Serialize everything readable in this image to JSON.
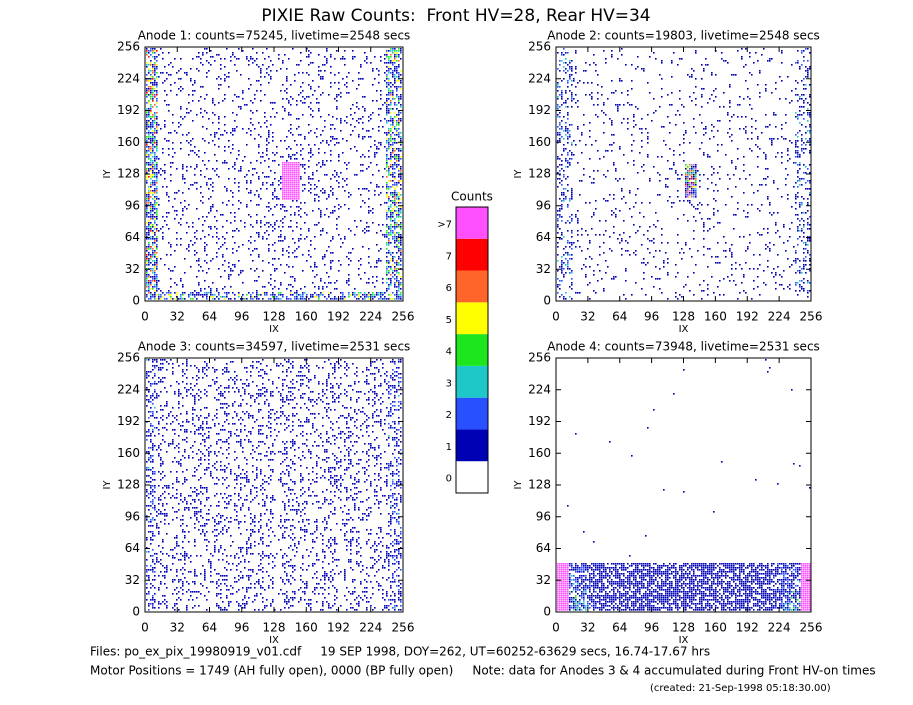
{
  "title": "PIXIE Raw Counts:  Front HV=28, Rear HV=34",
  "chart_data": [
    {
      "type": "heatmap",
      "title": "Anode 1: counts=75245, livetime=2548 secs",
      "xlabel": "IX",
      "ylabel": "IY",
      "xlim": [
        0,
        256
      ],
      "ylim": [
        0,
        256
      ],
      "xticks": [
        0,
        32,
        64,
        96,
        128,
        160,
        192,
        224,
        256
      ],
      "yticks": [
        0,
        32,
        64,
        96,
        128,
        160,
        192,
        224,
        256
      ]
    },
    {
      "type": "heatmap",
      "title": "Anode 2: counts=19803, livetime=2548 secs",
      "xlabel": "IX",
      "ylabel": "IY",
      "xlim": [
        0,
        256
      ],
      "ylim": [
        0,
        256
      ],
      "xticks": [
        0,
        32,
        64,
        96,
        128,
        160,
        192,
        224,
        256
      ],
      "yticks": [
        0,
        32,
        64,
        96,
        128,
        160,
        192,
        224,
        256
      ]
    },
    {
      "type": "heatmap",
      "title": "Anode 3: counts=34597, livetime=2531 secs",
      "xlabel": "IX",
      "ylabel": "IY",
      "xlim": [
        0,
        256
      ],
      "ylim": [
        0,
        256
      ],
      "xticks": [
        0,
        32,
        64,
        96,
        128,
        160,
        192,
        224,
        256
      ],
      "yticks": [
        0,
        32,
        64,
        96,
        128,
        160,
        192,
        224,
        256
      ]
    },
    {
      "type": "heatmap",
      "title": "Anode 4: counts=73948, livetime=2531 secs",
      "xlabel": "IX",
      "ylabel": "IY",
      "xlim": [
        0,
        256
      ],
      "ylim": [
        0,
        256
      ],
      "xticks": [
        0,
        32,
        64,
        96,
        128,
        160,
        192,
        224,
        256
      ],
      "yticks": [
        0,
        32,
        64,
        96,
        128,
        160,
        192,
        224,
        256
      ]
    }
  ],
  "colorbar": {
    "title": "Counts",
    "labels": [
      "0",
      "1",
      "2",
      "3",
      "4",
      "5",
      "6",
      "7",
      ">7"
    ],
    "colors": [
      "#ffffff",
      "#0000b4",
      "#2850ff",
      "#1ec8c8",
      "#1ee61e",
      "#ffff00",
      "#ff6428",
      "#ff0000",
      "#ff50ff"
    ]
  },
  "footer": [
    "Files: po_ex_pix_19980919_v01.cdf     19 SEP 1998, DOY=262, UT=60252-63629 secs, 16.74-17.67 hrs",
    "Motor Positions = 1749 (AH fully open), 0000 (BP fully open)     Note: data for Anodes 3 & 4 accumulated during Front HV-on times",
    "(created: 21-Sep-1998 05:18:30.00)"
  ]
}
